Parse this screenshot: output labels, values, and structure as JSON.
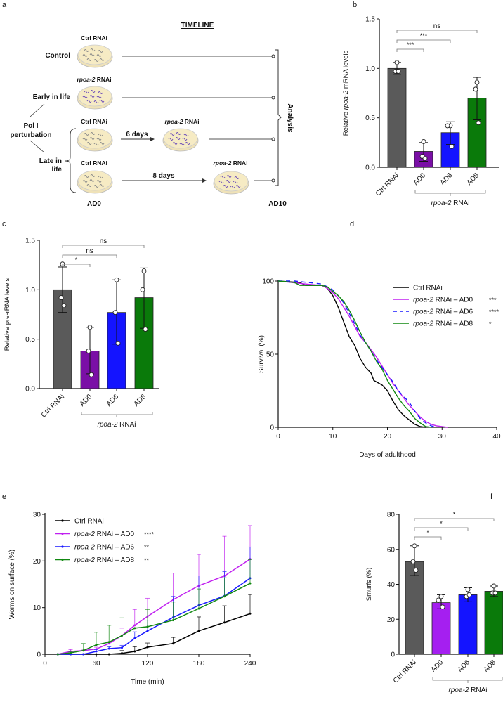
{
  "panel_labels": {
    "a": "a",
    "b": "b",
    "c": "c",
    "d": "d",
    "e": "e",
    "f": "f"
  },
  "timeline": {
    "title": "TIMELINE",
    "ctrl_label": "Ctrl RNAi",
    "rpoa_italic": "rpoa-2",
    "rnai": " RNAi",
    "control": "Control",
    "early": "Early in life",
    "pol1_line1": "Pol I",
    "pol1_line2": "perturbation",
    "late_line1": "Late in",
    "late_line2": "life",
    "six_days": "6 days",
    "eight_days": "8 days",
    "analysis": "Analysis",
    "ad0": "AD0",
    "ad10": "AD10",
    "colors": {
      "ad": "#2f6cc4",
      "ctrl_worm": "#8a8a8a",
      "rpoa_worm": "#6a4ab8",
      "dish": "#f6ebc4"
    }
  },
  "chart_data": [
    {
      "id": "b",
      "type": "bar",
      "ylabel": [
        "Relative ",
        "rpoa-2",
        " mRNA levels"
      ],
      "ylim": [
        0,
        1.5
      ],
      "yticks": [
        "0.0",
        "0.5",
        "1.0",
        "1.5"
      ],
      "ytick_values": [
        0,
        0.5,
        1.0,
        1.5
      ],
      "categories": [
        "Ctrl RNAi",
        "AD0",
        "AD6",
        "AD8"
      ],
      "values": [
        1.0,
        0.16,
        0.35,
        0.7
      ],
      "err_low": [
        0.94,
        0.06,
        0.23,
        0.48
      ],
      "err_high": [
        1.06,
        0.25,
        0.46,
        0.91
      ],
      "points": [
        [
          1.06,
          0.97,
          0.97
        ],
        [
          0.26,
          0.11,
          0.09
        ],
        [
          0.42,
          0.42,
          0.21
        ],
        [
          0.86,
          0.79,
          0.45
        ]
      ],
      "colors": [
        "#5a5a5a",
        "#7a0fa6",
        "#1414ff",
        "#0a7a0a"
      ],
      "group_label": [
        "rpoa-2",
        " RNAi"
      ],
      "comparisons": [
        {
          "to": 1,
          "label": "***"
        },
        {
          "to": 2,
          "label": "***"
        },
        {
          "to": 3,
          "label": "ns"
        }
      ]
    },
    {
      "id": "c",
      "type": "bar",
      "ylabel": [
        "Relative pre-rRNA levels"
      ],
      "ylim": [
        0,
        1.5
      ],
      "yticks": [
        "0.0",
        "0.5",
        "1.0",
        "1.5"
      ],
      "ytick_values": [
        0,
        0.5,
        1.0,
        1.5
      ],
      "categories": [
        "Ctrl RNAi",
        "AD0",
        "AD6",
        "AD8"
      ],
      "values": [
        1.0,
        0.38,
        0.77,
        0.92
      ],
      "err_low": [
        0.77,
        0.15,
        0.45,
        0.61
      ],
      "err_high": [
        1.23,
        0.62,
        1.1,
        1.22
      ],
      "points": [
        [
          1.26,
          0.92,
          0.84
        ],
        [
          0.62,
          0.38,
          0.14
        ],
        [
          1.1,
          0.77,
          0.46
        ],
        [
          1.19,
          1.0,
          0.6
        ]
      ],
      "colors": [
        "#5a5a5a",
        "#7a0fa6",
        "#1414ff",
        "#0a7a0a"
      ],
      "group_label": [
        "rpoa-2",
        " RNAi"
      ],
      "comparisons": [
        {
          "to": 1,
          "label": "*"
        },
        {
          "to": 2,
          "label": "ns"
        },
        {
          "to": 3,
          "label": "ns"
        }
      ]
    },
    {
      "id": "d",
      "type": "line",
      "xlabel": "Days of adulthood",
      "ylabel": "Survival (%)",
      "xlim": [
        0,
        40
      ],
      "ylim": [
        0,
        100
      ],
      "xticks": [
        "0",
        "10",
        "20",
        "30",
        "40"
      ],
      "xtick_values": [
        0,
        10,
        20,
        30,
        40
      ],
      "yticks": [
        "0",
        "50",
        "100"
      ],
      "ytick_values": [
        0,
        50,
        100
      ],
      "legend_position": "top-right",
      "series": [
        {
          "name": [
            "",
            "Ctrl RNAi"
          ],
          "sig": "",
          "color": "#000000",
          "dashed": false,
          "x": [
            0,
            4,
            5,
            8,
            9,
            10,
            11,
            12,
            13,
            14,
            15,
            16,
            17,
            17.5,
            18.5,
            19,
            20,
            21,
            22,
            23,
            24,
            25,
            26,
            27
          ],
          "y": [
            100,
            99,
            97,
            97,
            95,
            90,
            82,
            72,
            62,
            56,
            47,
            41,
            37,
            32,
            30,
            29,
            25,
            18,
            12,
            8,
            5,
            2,
            0.5,
            0
          ]
        },
        {
          "name": [
            "rpoa-2",
            " RNAi – AD0"
          ],
          "sig": "***",
          "color": "#c020f0",
          "dashed": false,
          "x": [
            0,
            5,
            8,
            9,
            10,
            11,
            12,
            13,
            14,
            15,
            16,
            17,
            18,
            19,
            20,
            21,
            22,
            23,
            24,
            25,
            26,
            27,
            28,
            29,
            30,
            31
          ],
          "y": [
            100,
            98,
            97,
            95,
            92,
            88,
            82,
            76,
            69,
            62,
            58,
            53,
            48,
            42,
            36,
            30,
            25,
            20,
            15,
            11,
            7,
            4,
            2,
            1,
            0.5,
            0
          ]
        },
        {
          "name": [
            "rpoa-2",
            " RNAi – AD6"
          ],
          "sig": "****",
          "color": "#1a1aff",
          "dashed": true,
          "x": [
            0,
            3,
            8,
            9,
            10,
            11,
            12,
            13,
            14,
            15,
            16,
            17,
            18,
            19,
            20,
            21,
            22,
            23,
            24,
            25,
            26,
            27,
            28,
            29
          ],
          "y": [
            100,
            100,
            98,
            96,
            94,
            90,
            85,
            78,
            71,
            63,
            58,
            52,
            46,
            41,
            36,
            31,
            25,
            21,
            17,
            11,
            6,
            3,
            1,
            0
          ]
        },
        {
          "name": [
            "rpoa-2",
            " RNAi – AD8"
          ],
          "sig": "*",
          "color": "#118811",
          "dashed": false,
          "x": [
            0,
            3,
            4,
            8,
            9,
            10,
            11,
            12,
            13,
            14,
            15,
            16,
            17,
            18,
            19,
            20,
            21,
            22,
            23,
            24,
            25,
            26,
            27,
            28
          ],
          "y": [
            100,
            99,
            97,
            97,
            96,
            93,
            90,
            86,
            80,
            73,
            65,
            58,
            52,
            45,
            40,
            32,
            26,
            20,
            15,
            11,
            6,
            3,
            0.5,
            0
          ]
        }
      ]
    },
    {
      "id": "e",
      "type": "line",
      "xlabel": "Time (min)",
      "ylabel": "Worms on surface (%)",
      "xlim": [
        0,
        240
      ],
      "ylim": [
        0,
        30
      ],
      "xticks": [
        "0",
        "60",
        "120",
        "180",
        "240"
      ],
      "xtick_values": [
        0,
        60,
        120,
        180,
        240
      ],
      "yticks": [
        "0",
        "10",
        "20",
        "30"
      ],
      "ytick_values": [
        0,
        10,
        20,
        30
      ],
      "legend_position": "top-left",
      "x": [
        15,
        30,
        45,
        60,
        75,
        90,
        105,
        120,
        150,
        180,
        210,
        240
      ],
      "series": [
        {
          "name": [
            "",
            "Ctrl RNAi"
          ],
          "sig": "",
          "color": "#000000",
          "y": [
            0,
            0,
            0,
            0,
            0,
            0.2,
            0.6,
            1.5,
            2.3,
            5,
            6.8,
            8.7
          ],
          "err_high": [
            0,
            0,
            0,
            0,
            0,
            0.8,
            1.6,
            2.4,
            3.6,
            8,
            10.4,
            12.8
          ]
        },
        {
          "name": [
            "rpoa-2",
            " RNAi – AD0"
          ],
          "sig": "****",
          "color": "#c020f0",
          "y": [
            0,
            0.6,
            0.8,
            1.1,
            2.3,
            4,
            6.2,
            8.1,
            11.7,
            14.7,
            16.8,
            20.4
          ],
          "err_high": [
            0,
            1,
            0.9,
            1.5,
            2.7,
            5.6,
            9.6,
            12,
            17.4,
            21.4,
            25.3,
            27.6
          ]
        },
        {
          "name": [
            "rpoa-2",
            " RNAi – AD6"
          ],
          "sig": "**",
          "color": "#1a1aff",
          "y": [
            0,
            0,
            0,
            0.6,
            1.2,
            1.4,
            3.4,
            5,
            7.9,
            10.5,
            12.5,
            16.3
          ],
          "err_high": [
            0,
            0,
            0,
            1,
            1.6,
            1.9,
            4.8,
            7.3,
            12.4,
            16.8,
            17.7,
            23
          ]
        },
        {
          "name": [
            "rpoa-2",
            " RNAi – AD8"
          ],
          "sig": "**",
          "color": "#118811",
          "y": [
            0,
            0.3,
            0.8,
            2,
            2.6,
            4,
            5.6,
            5.9,
            7.3,
            9.8,
            12.4,
            15.2
          ],
          "err_high": [
            0,
            0.5,
            2.3,
            4.7,
            6.2,
            7.8,
            5.6,
            9.6,
            11.2,
            14,
            16.4,
            20.3
          ]
        }
      ]
    },
    {
      "id": "f",
      "type": "bar",
      "ylabel": [
        "Smurfs (%)"
      ],
      "ylim": [
        0,
        80
      ],
      "yticks": [
        "0",
        "20",
        "40",
        "60",
        "80"
      ],
      "ytick_values": [
        0,
        20,
        40,
        60,
        80
      ],
      "categories": [
        "Ctrl RNAi",
        "AD0",
        "AD6",
        "AD8"
      ],
      "values": [
        53,
        29.5,
        34,
        36
      ],
      "err_low": [
        45,
        26,
        30,
        33
      ],
      "err_high": [
        62,
        34,
        38,
        39
      ],
      "points": [
        [
          62,
          53,
          48
        ],
        [
          33,
          31,
          27
        ],
        [
          37,
          33,
          34
        ],
        [
          39,
          35,
          35
        ]
      ],
      "colors": [
        "#5a5a5a",
        "#a51ff0",
        "#1414ff",
        "#0a7a0a"
      ],
      "group_label": [
        "rpoa-2",
        " RNAi"
      ],
      "comparisons": [
        {
          "to": 1,
          "label": "*"
        },
        {
          "to": 2,
          "label": "*"
        },
        {
          "to": 3,
          "label": "*"
        }
      ]
    }
  ]
}
